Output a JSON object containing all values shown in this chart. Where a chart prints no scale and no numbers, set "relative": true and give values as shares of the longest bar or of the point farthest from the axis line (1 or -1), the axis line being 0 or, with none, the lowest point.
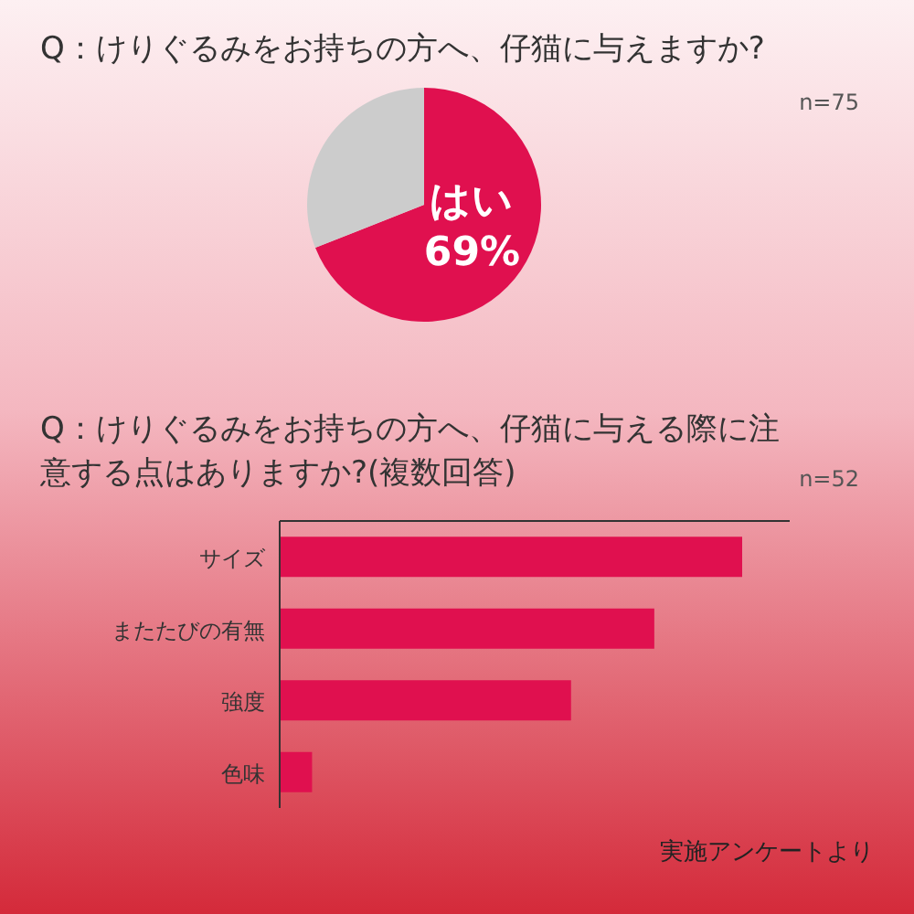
{
  "chart_data": [
    {
      "type": "pie",
      "title": "Q：けりぐるみをお持ちの方へ、仔猫に与えますか?",
      "annotations": [
        "n=75"
      ],
      "categories": [
        "はい",
        null
      ],
      "values": [
        69,
        31
      ],
      "value_labels": [
        "69%",
        null
      ],
      "colors": [
        "#e0104f",
        "#cccccc"
      ]
    },
    {
      "type": "bar",
      "orientation": "horizontal",
      "relative": true,
      "title": "Q：けりぐるみをお持ちの方へ、仔猫に与える際に注意する点はありますか?(複数回答)",
      "categories": [
        "サイズ",
        "またたびの有無",
        "強度",
        "色味"
      ],
      "values": [
        1,
        0.81,
        0.63,
        0.07
      ],
      "color": "#e0104f",
      "annotations": [
        "n=52",
        "実施アンケートより"
      ]
    }
  ]
}
